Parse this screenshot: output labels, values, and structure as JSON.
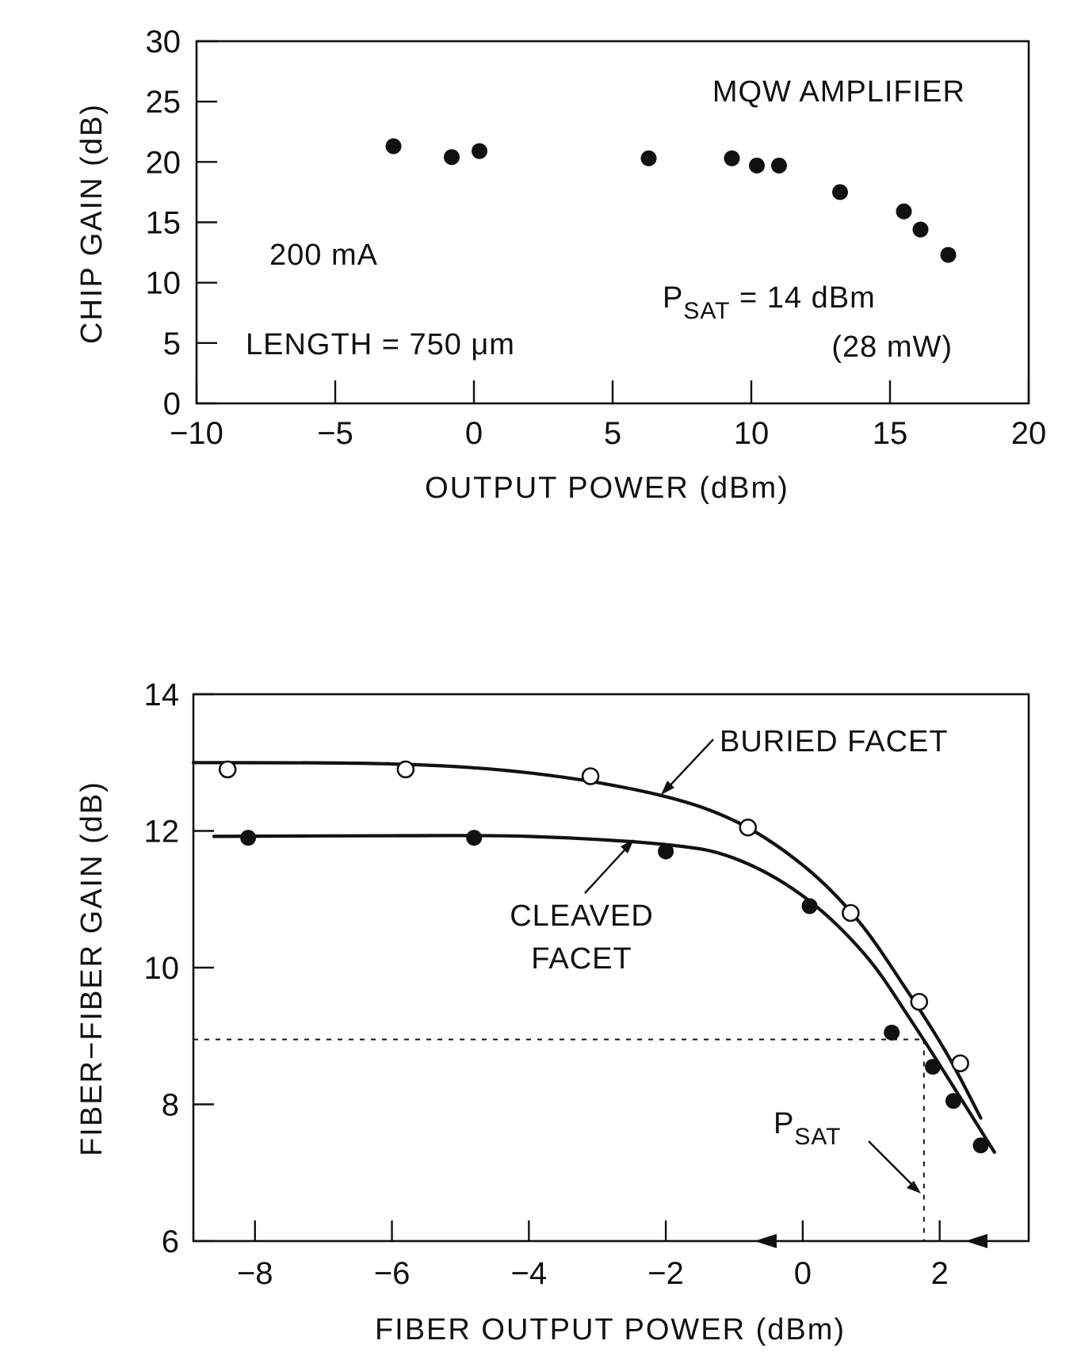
{
  "chart_data": [
    {
      "type": "scatter",
      "xlabel": "OUTPUT POWER (dBm)",
      "ylabel": "CHIP GAIN (dB)",
      "xlim": [
        -10,
        20
      ],
      "ylim": [
        0,
        30
      ],
      "xticks": [
        -10,
        -5,
        0,
        5,
        10,
        15,
        20
      ],
      "yticks": [
        0,
        5,
        10,
        15,
        20,
        25,
        30
      ],
      "xtick_labels": [
        "−10",
        "−5",
        "0",
        "5",
        "10",
        "15",
        "20"
      ],
      "ytick_labels": [
        "0",
        "5",
        "10",
        "15",
        "20",
        "25",
        "30"
      ],
      "grid": false,
      "points": [
        {
          "x": -2.9,
          "y": 21.3
        },
        {
          "x": -0.8,
          "y": 20.4
        },
        {
          "x": 0.2,
          "y": 20.9
        },
        {
          "x": 6.3,
          "y": 20.3
        },
        {
          "x": 9.3,
          "y": 20.3
        },
        {
          "x": 10.2,
          "y": 19.7
        },
        {
          "x": 11.0,
          "y": 19.7
        },
        {
          "x": 13.2,
          "y": 17.5
        },
        {
          "x": 15.5,
          "y": 15.9
        },
        {
          "x": 16.1,
          "y": 14.4
        },
        {
          "x": 17.1,
          "y": 12.3
        }
      ],
      "annotations": {
        "title_text": "MQW AMPLIFIER",
        "current": "200 mA",
        "length": "LENGTH = 750 μm",
        "psat_main": "P",
        "psat_sub": "SAT",
        "psat_value": " = 14 dBm",
        "psat_mw": "(28 mW)"
      }
    },
    {
      "type": "line",
      "xlabel": "FIBER OUTPUT POWER (dBm)",
      "ylabel": "FIBER−FIBER GAIN (dB)",
      "xlim": [
        -8.9,
        3.3
      ],
      "ylim": [
        6,
        14
      ],
      "xticks": [
        -8,
        -6,
        -4,
        -2,
        0,
        2
      ],
      "yticks": [
        6,
        8,
        10,
        12,
        14
      ],
      "xtick_labels": [
        "−8",
        "−6",
        "−4",
        "−2",
        "0",
        "2"
      ],
      "ytick_labels": [
        "6",
        "8",
        "10",
        "12",
        "14"
      ],
      "grid": false,
      "series": [
        {
          "name": "BURIED FACET",
          "marker": "open-circle",
          "points": [
            {
              "x": -8.4,
              "y": 12.9
            },
            {
              "x": -5.8,
              "y": 12.9
            },
            {
              "x": -3.1,
              "y": 12.8
            },
            {
              "x": -0.8,
              "y": 12.05
            },
            {
              "x": 0.7,
              "y": 10.8
            },
            {
              "x": 1.7,
              "y": 9.5
            },
            {
              "x": 2.3,
              "y": 8.6
            }
          ],
          "curve": [
            {
              "x": -8.9,
              "y": 13.0
            },
            {
              "x": -6.0,
              "y": 12.98
            },
            {
              "x": -4.0,
              "y": 12.85
            },
            {
              "x": -2.2,
              "y": 12.55
            },
            {
              "x": -1.0,
              "y": 12.15
            },
            {
              "x": 0.0,
              "y": 11.5
            },
            {
              "x": 0.8,
              "y": 10.7
            },
            {
              "x": 1.5,
              "y": 9.7
            },
            {
              "x": 2.1,
              "y": 8.75
            },
            {
              "x": 2.6,
              "y": 7.8
            }
          ]
        },
        {
          "name": "CLEAVED FACET",
          "marker": "filled-circle",
          "points": [
            {
              "x": -8.1,
              "y": 11.9
            },
            {
              "x": -4.8,
              "y": 11.9
            },
            {
              "x": -2.0,
              "y": 11.7
            },
            {
              "x": 0.1,
              "y": 10.9
            },
            {
              "x": 1.3,
              "y": 9.05
            },
            {
              "x": 1.9,
              "y": 8.55
            },
            {
              "x": 2.2,
              "y": 8.05
            },
            {
              "x": 2.6,
              "y": 7.4
            }
          ],
          "curve": [
            {
              "x": -8.6,
              "y": 11.92
            },
            {
              "x": -6.0,
              "y": 11.93
            },
            {
              "x": -4.0,
              "y": 11.92
            },
            {
              "x": -2.0,
              "y": 11.8
            },
            {
              "x": -1.0,
              "y": 11.6
            },
            {
              "x": 0.0,
              "y": 11.05
            },
            {
              "x": 0.9,
              "y": 10.2
            },
            {
              "x": 1.6,
              "y": 9.2
            },
            {
              "x": 2.3,
              "y": 8.1
            },
            {
              "x": 2.8,
              "y": 7.3
            }
          ]
        }
      ],
      "psat_guide": {
        "x": 1.77,
        "y": 8.95
      },
      "annotations": {
        "buried_label": "BURIED FACET",
        "cleaved_label_1": "CLEAVED",
        "cleaved_label_2": "FACET",
        "psat_main": "P",
        "psat_sub": "SAT"
      }
    }
  ]
}
